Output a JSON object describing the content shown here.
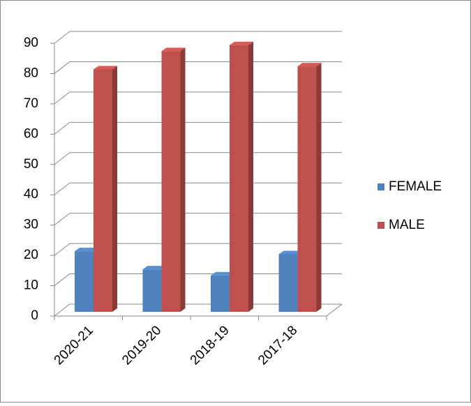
{
  "chart_data": {
    "type": "bar3d",
    "categories": [
      "2020-21",
      "2019-20",
      "2018-19",
      "2017-18"
    ],
    "series": [
      {
        "name": "FEMALE",
        "color": "#4f81bd",
        "values": [
          20,
          14,
          12,
          19
        ]
      },
      {
        "name": "MALE",
        "color": "#c0504d",
        "values": [
          80,
          86,
          88,
          81
        ]
      }
    ],
    "ylim": [
      0,
      90
    ],
    "yticks": [
      0,
      10,
      20,
      30,
      40,
      50,
      60,
      70,
      80,
      90
    ],
    "grid": true,
    "legend": "right"
  }
}
